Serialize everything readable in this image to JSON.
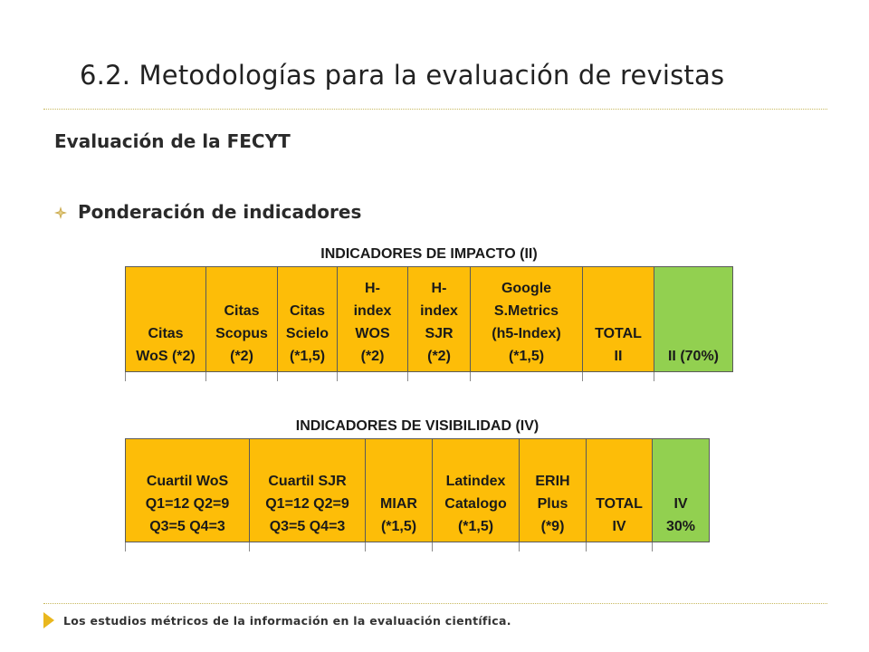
{
  "slide": {
    "title": "6.2. Metodologías para la evaluación de revistas",
    "subtitle": "Evaluación de la FECYT",
    "bullet": "Ponderación de indicadores",
    "footer": "Los estudios métricos de la información en la evaluación científica."
  },
  "colors": {
    "orange": "#fdbd08",
    "green": "#92d050",
    "accent": "#e9b71d"
  },
  "icons": {
    "bullet": "four-point-diamond-icon",
    "footer": "triangle-play-icon"
  },
  "impact_table": {
    "heading": "INDICADORES DE IMPACTO (II)",
    "headers": [
      "Citas\nWoS (*2)",
      "Citas\nScopus\n(*2)",
      "Citas\nScielo\n(*1,5)",
      "H-\nindex\nWOS\n(*2)",
      "H-\nindex\nSJR\n(*2)",
      "Google\nS.Metrics\n(h5-Index)\n(*1,5)",
      "TOTAL\nII",
      "II (70%)"
    ]
  },
  "visibility_table": {
    "heading": "INDICADORES DE VISIBILIDAD (IV)",
    "headers": [
      "Cuartil WoS\nQ1=12 Q2=9\nQ3=5 Q4=3",
      "Cuartil SJR\nQ1=12 Q2=9\nQ3=5 Q4=3",
      "MIAR\n(*1,5)",
      "Latindex\nCatalogo\n(*1,5)",
      "ERIH\nPlus\n(*9)",
      "TOTAL\nIV",
      "IV\n30%"
    ]
  }
}
